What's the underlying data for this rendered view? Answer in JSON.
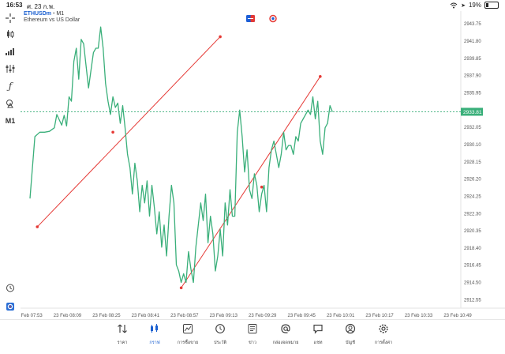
{
  "status_bar": {
    "time": "16:53",
    "date": "ศ. 23 ก.พ.",
    "battery": "19%",
    "battery_level": 0.19
  },
  "header": {
    "symbol": "ETHUSDm",
    "sep": " • ",
    "timeframe": "M1",
    "description": "Ethereum vs US Dollar"
  },
  "toolbar": {
    "items": [
      {
        "name": "crosshair-icon"
      },
      {
        "name": "candlestick-type-icon"
      },
      {
        "name": "bar-chart-icon"
      },
      {
        "name": "indicators-icon"
      },
      {
        "name": "function-icon"
      },
      {
        "name": "objects-icon"
      },
      {
        "name": "timeframe-button",
        "label": "M1"
      }
    ],
    "bottom_items": [
      {
        "name": "alarm-clock-icon"
      },
      {
        "name": "trade-panel-icon"
      }
    ]
  },
  "chart_data": {
    "type": "line",
    "color": "#3aaf7a",
    "price_line_color": "#3aaf7a",
    "last_price": "2933.81",
    "y_ticks": [
      "2943.75",
      "2941.80",
      "2939.85",
      "2937.90",
      "2935.95",
      "2934.00",
      "2932.05",
      "2930.10",
      "2928.15",
      "2926.20",
      "2924.25",
      "2922.30",
      "2920.35",
      "2918.40",
      "2916.45",
      "2914.50",
      "2912.55"
    ],
    "ylim": [
      2911.6,
      2945.2
    ],
    "x_ticks": [
      "23 Feb 07:53",
      "23 Feb 08:09",
      "23 Feb 08:25",
      "23 Feb 08:41",
      "23 Feb 08:57",
      "23 Feb 09:13",
      "23 Feb 09:29",
      "23 Feb 09:45",
      "23 Feb 10:01",
      "23 Feb 10:17",
      "23 Feb 10:33",
      "23 Feb 10:49"
    ],
    "x_unit": "minutes after 07:53",
    "series": [
      {
        "values": [
          [
            0,
            2924.0
          ],
          [
            2,
            2931.0
          ],
          [
            4,
            2931.5
          ],
          [
            6,
            2931.5
          ],
          [
            8,
            2931.6
          ],
          [
            10,
            2932.0
          ],
          [
            11,
            2933.5
          ],
          [
            13,
            2932.3
          ],
          [
            14,
            2933.4
          ],
          [
            15,
            2932.2
          ],
          [
            16,
            2935.5
          ],
          [
            17,
            2935.0
          ],
          [
            18,
            2939.5
          ],
          [
            19,
            2941.0
          ],
          [
            20,
            2937.5
          ],
          [
            21,
            2942.0
          ],
          [
            22,
            2941.5
          ],
          [
            23,
            2939.0
          ],
          [
            24,
            2936.5
          ],
          [
            25,
            2938.5
          ],
          [
            26,
            2940.5
          ],
          [
            27,
            2941.0
          ],
          [
            28,
            2941.0
          ],
          [
            29,
            2943.4
          ],
          [
            30,
            2941.0
          ],
          [
            31,
            2937.0
          ],
          [
            32,
            2935.0
          ],
          [
            33,
            2933.5
          ],
          [
            34,
            2935.5
          ],
          [
            35,
            2934.3
          ],
          [
            36,
            2934.8
          ],
          [
            37,
            2932.5
          ],
          [
            38,
            2934.5
          ],
          [
            39,
            2932.0
          ],
          [
            40,
            2929.0
          ],
          [
            41,
            2927.5
          ],
          [
            42,
            2924.5
          ],
          [
            43,
            2928.0
          ],
          [
            44,
            2926.0
          ],
          [
            45,
            2922.5
          ],
          [
            46,
            2925.5
          ],
          [
            47,
            2923.5
          ],
          [
            48,
            2926.0
          ],
          [
            49,
            2922.0
          ],
          [
            50,
            2925.5
          ],
          [
            51,
            2923.0
          ],
          [
            52,
            2920.0
          ],
          [
            53,
            2922.5
          ],
          [
            54,
            2918.5
          ],
          [
            55,
            2921.0
          ],
          [
            56,
            2917.5
          ],
          [
            57,
            2922.0
          ],
          [
            58,
            2925.5
          ],
          [
            59,
            2923.5
          ],
          [
            60,
            2916.5
          ],
          [
            61,
            2915.8
          ],
          [
            62,
            2914.5
          ],
          [
            63,
            2915.5
          ],
          [
            64,
            2914.5
          ],
          [
            65,
            2918.0
          ],
          [
            66,
            2916.0
          ],
          [
            67,
            2914.5
          ],
          [
            68,
            2918.5
          ],
          [
            69,
            2921.0
          ],
          [
            70,
            2923.5
          ],
          [
            71,
            2921.5
          ],
          [
            72,
            2924.5
          ],
          [
            73,
            2919.0
          ],
          [
            74,
            2922.0
          ],
          [
            75,
            2920.0
          ],
          [
            76,
            2915.8
          ],
          [
            77,
            2917.5
          ],
          [
            78,
            2920.5
          ],
          [
            79,
            2917.5
          ],
          [
            80,
            2923.5
          ],
          [
            81,
            2921.0
          ],
          [
            82,
            2925.0
          ],
          [
            83,
            2922.0
          ],
          [
            84,
            2922.0
          ],
          [
            85,
            2931.5
          ],
          [
            86,
            2934.0
          ],
          [
            87,
            2931.0
          ],
          [
            88,
            2927.0
          ],
          [
            89,
            2929.5
          ],
          [
            90,
            2925.0
          ],
          [
            91,
            2924.0
          ],
          [
            92,
            2926.8
          ],
          [
            93,
            2925.5
          ],
          [
            94,
            2922.5
          ],
          [
            95,
            2924.5
          ],
          [
            96,
            2925.5
          ],
          [
            97,
            2922.5
          ],
          [
            98,
            2927.5
          ],
          [
            99,
            2929.5
          ],
          [
            100,
            2930.5
          ],
          [
            101,
            2929.0
          ],
          [
            102,
            2927.5
          ],
          [
            103,
            2929.0
          ],
          [
            104,
            2931.5
          ],
          [
            105,
            2929.5
          ],
          [
            106,
            2930.0
          ],
          [
            107,
            2930.0
          ],
          [
            108,
            2929.0
          ],
          [
            109,
            2931.0
          ],
          [
            110,
            2930.5
          ],
          [
            111,
            2932.5
          ],
          [
            112,
            2933.0
          ],
          [
            113,
            2933.5
          ],
          [
            114,
            2934.0
          ],
          [
            115,
            2933.5
          ],
          [
            116,
            2935.5
          ],
          [
            117,
            2933.0
          ],
          [
            118,
            2935.0
          ],
          [
            119,
            2930.5
          ],
          [
            120,
            2929.0
          ],
          [
            121,
            2932.0
          ],
          [
            122,
            2932.5
          ],
          [
            123,
            2934.5
          ],
          [
            124,
            2933.81
          ]
        ]
      }
    ],
    "trend_lines": [
      {
        "color": "#e53935",
        "points": [
          [
            3,
            2920.8
          ],
          [
            34,
            2931.5
          ],
          [
            78,
            2942.3
          ]
        ]
      },
      {
        "color": "#e53935",
        "points": [
          [
            62,
            2913.9
          ],
          [
            95,
            2925.3
          ],
          [
            119,
            2937.8
          ]
        ]
      }
    ]
  },
  "chart_header_icons": [
    {
      "name": "trade-buy-sell-icon"
    },
    {
      "name": "one-click-trading-icon"
    }
  ],
  "nav": {
    "active": 1,
    "items": [
      {
        "name": "nav-quotes",
        "icon": "quotes-icon",
        "label": "ราคา"
      },
      {
        "name": "nav-chart",
        "icon": "chart-icon",
        "label": "กราฟ"
      },
      {
        "name": "nav-trade",
        "icon": "trade-icon",
        "label": "การซื้อขาย"
      },
      {
        "name": "nav-history",
        "icon": "history-icon",
        "label": "ประวัติ"
      },
      {
        "name": "nav-news",
        "icon": "news-icon",
        "label": "ข่าว"
      },
      {
        "name": "nav-mailbox",
        "icon": "mailbox-icon",
        "label": "กล่องจดหมาย"
      },
      {
        "name": "nav-chat",
        "icon": "chat-icon",
        "label": "แชท"
      },
      {
        "name": "nav-accounts",
        "icon": "accounts-icon",
        "label": "บัญชี"
      },
      {
        "name": "nav-settings",
        "icon": "settings-icon",
        "label": "การตั้งค่า"
      }
    ]
  }
}
